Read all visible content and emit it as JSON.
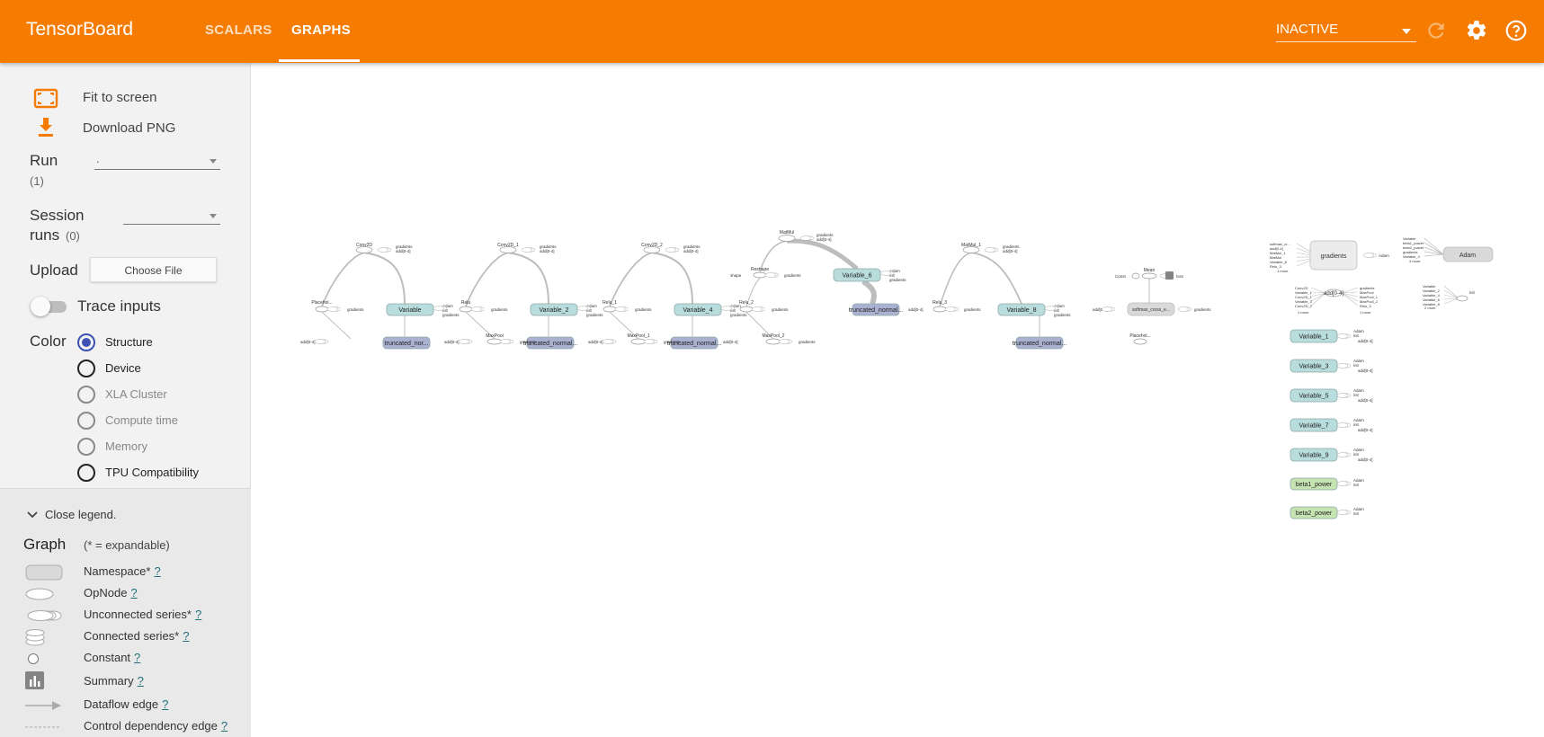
{
  "header": {
    "brand": "TensorBoard",
    "tabs": [
      {
        "label": "SCALARS",
        "active": false
      },
      {
        "label": "GRAPHS",
        "active": true
      }
    ],
    "run_status": "INACTIVE",
    "icons": [
      "refresh-icon",
      "settings-icon",
      "help-icon"
    ]
  },
  "sidebar": {
    "fit_to_screen": "Fit to screen",
    "download_png": "Download PNG",
    "run": {
      "label": "Run",
      "count": "(1)",
      "value": "."
    },
    "session_runs": {
      "label_line1": "Session",
      "label_line2": "runs",
      "count": "(0)",
      "value": ""
    },
    "upload": {
      "label": "Upload",
      "button": "Choose File"
    },
    "trace_inputs": {
      "label": "Trace inputs",
      "enabled": false
    },
    "color": {
      "label": "Color",
      "options": [
        {
          "label": "Structure",
          "checked": true,
          "enabled": true
        },
        {
          "label": "Device",
          "checked": false,
          "enabled": true
        },
        {
          "label": "XLA Cluster",
          "checked": false,
          "enabled": false
        },
        {
          "label": "Compute time",
          "checked": false,
          "enabled": false
        },
        {
          "label": "Memory",
          "checked": false,
          "enabled": false
        },
        {
          "label": "TPU Compatibility",
          "checked": false,
          "enabled": true
        }
      ]
    }
  },
  "legend": {
    "close_label": "Close legend.",
    "title": "Graph",
    "subtitle": "(* = expandable)",
    "items": [
      {
        "label": "Namespace*",
        "help": "?"
      },
      {
        "label": "OpNode",
        "help": "?"
      },
      {
        "label": "Unconnected series*",
        "help": "?"
      },
      {
        "label": "Connected series*",
        "help": "?"
      },
      {
        "label": "Constant",
        "help": "?"
      },
      {
        "label": "Summary",
        "help": "?"
      },
      {
        "label": "Dataflow edge",
        "help": "?"
      },
      {
        "label": "Control dependency edge",
        "help": "?"
      }
    ]
  },
  "colors": {
    "header_bg": "#f57c00",
    "variable_node": "#b9dcdc",
    "truncated_node": "#aab1d1",
    "beta_node": "#c6e3b2",
    "namespace_node": "#d9d9d9",
    "radio_checked": "#3f51b5",
    "icon_orange": "#f57c00"
  },
  "graph": {
    "variables": [
      "Variable",
      "Variable_2",
      "Variable_4",
      "Variable_6",
      "Variable_8"
    ],
    "truncated": [
      "truncated_nor...",
      "truncated_normal...",
      "truncated_normal...",
      "truncated_normal...",
      "truncated_normal..."
    ],
    "ops_top": [
      "Conv2D",
      "Conv2D_1",
      "Conv2D_2",
      "MatMul",
      "MatMul_1"
    ],
    "ops_mid": [
      "Placehol...",
      "Relu",
      "Relu_1",
      "Reshape",
      "Relu_3"
    ],
    "ops_bottom": [
      "MaxPool",
      "MaxPool_1",
      "MaxPool_2"
    ],
    "misc": {
      "gradients": "gradients",
      "adam": "Adam",
      "init": "init",
      "add": "add[0-4]",
      "add_short": "add[0-4]",
      "shape": "shape",
      "mean": "Mean",
      "const": "Const",
      "softmax": "softmax_cross_e...",
      "placeholder_1": "Placehol...",
      "more": "1 more",
      "more2": "2 more",
      "more3": "3 more"
    },
    "right_variables": [
      "Variable_1",
      "Variable_3",
      "Variable_5",
      "Variable_7",
      "Variable_9"
    ],
    "betas": [
      "beta1_power",
      "beta2_power"
    ],
    "gradient_inputs": [
      "softmax_cr...",
      "add[0-4]",
      "MatMul_1",
      "MatMul",
      "Variable_8",
      "Relu_3"
    ],
    "adam_inputs": [
      "Variable",
      "beta1_power",
      "beta2_power",
      "gradients",
      "Variable_4"
    ],
    "add_inputs": [
      "Conv2D",
      "Variable_1",
      "Conv2D_1",
      "Variable_3",
      "Conv2D_2"
    ],
    "add_outputs": [
      "gradients",
      "MaxPool",
      "MaxPool_1",
      "MaxPool_2",
      "Relu_3"
    ],
    "init_inputs": [
      "Variable",
      "Variable_2",
      "Variable_4",
      "Variable_6",
      "Variable_8"
    ]
  }
}
